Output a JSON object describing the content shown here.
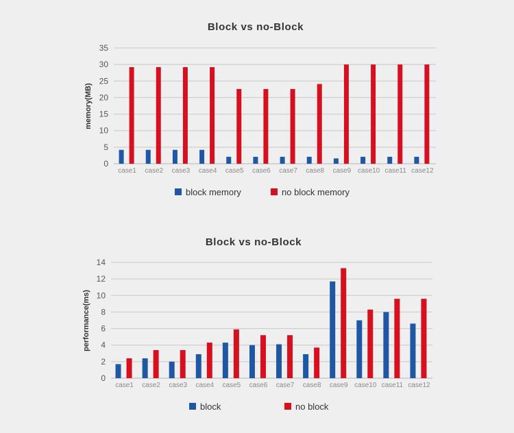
{
  "chart_data": [
    {
      "type": "bar",
      "title": "Block vs no-Block",
      "xlabel": "",
      "ylabel": "memory(MB)",
      "ylim": [
        0,
        35
      ],
      "yticks": [
        0,
        5,
        10,
        15,
        20,
        25,
        30,
        35
      ],
      "grid": true,
      "legend_position": "bottom",
      "categories": [
        "case1",
        "case2",
        "case3",
        "case4",
        "case5",
        "case6",
        "case7",
        "case8",
        "case9",
        "case10",
        "case11",
        "case12"
      ],
      "series": [
        {
          "name": "block memory",
          "color": "#1f57a4",
          "values": [
            4.2,
            4.2,
            4.2,
            4.2,
            2.1,
            2.1,
            2.1,
            2.1,
            1.6,
            2.1,
            2.1,
            2.1
          ]
        },
        {
          "name": "no block memory",
          "color": "#d7101f",
          "values": [
            29.2,
            29.2,
            29.2,
            29.2,
            22.6,
            22.6,
            22.6,
            24.1,
            30.0,
            30.0,
            30.0,
            30.0
          ]
        }
      ]
    },
    {
      "type": "bar",
      "title": "Block vs no-Block",
      "xlabel": "",
      "ylabel": "performance(ms)",
      "ylim": [
        0,
        14
      ],
      "yticks": [
        0,
        2,
        4,
        6,
        8,
        10,
        12,
        14
      ],
      "grid": true,
      "legend_position": "bottom",
      "categories": [
        "case1",
        "case2",
        "case3",
        "case4",
        "case5",
        "case6",
        "case7",
        "case8",
        "case9",
        "case10",
        "case11",
        "case12"
      ],
      "series": [
        {
          "name": "block",
          "color": "#1f57a4",
          "values": [
            1.7,
            2.4,
            2.0,
            2.9,
            4.3,
            4.0,
            4.1,
            2.9,
            11.7,
            7.0,
            8.0,
            6.6
          ]
        },
        {
          "name": "no block",
          "color": "#d7101f",
          "values": [
            2.4,
            3.4,
            3.4,
            4.3,
            5.9,
            5.2,
            5.2,
            3.7,
            13.3,
            8.3,
            9.6,
            9.6
          ]
        }
      ]
    }
  ]
}
